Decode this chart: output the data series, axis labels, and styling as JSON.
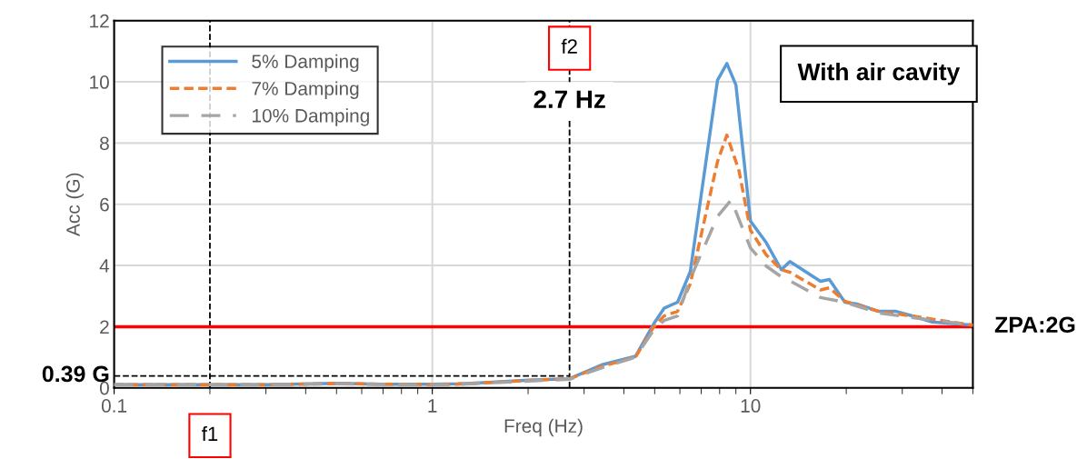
{
  "chart_data": {
    "type": "line",
    "xlabel": "Freq (Hz)",
    "ylabel": "Acc (G)",
    "log": "x",
    "xlim": [
      0.1,
      50
    ],
    "xticks": [
      0.1,
      1,
      10
    ],
    "ylim": [
      0,
      12
    ],
    "yticks": [
      0,
      2,
      4,
      6,
      8,
      10,
      12
    ],
    "grid": true,
    "legend": "top left",
    "series": [
      {
        "name": "5% Damping",
        "color": "#5b9bd5",
        "line_style": "solid",
        "x": [
          0.1,
          0.2,
          0.3,
          0.5,
          0.7,
          1,
          1.2,
          1.5,
          2,
          2.7,
          3.4,
          4.35,
          4.97,
          5.35,
          5.9,
          6.47,
          7.88,
          8.43,
          9.0,
          10,
          11.2,
          12.5,
          13.3,
          16.6,
          17.7,
          19.8,
          21.6,
          25.3,
          28.7,
          32,
          37.3,
          44.4,
          50
        ],
        "values": [
          0.1,
          0.1,
          0.1,
          0.15,
          0.12,
          0.12,
          0.13,
          0.18,
          0.25,
          0.3,
          0.75,
          1.03,
          2.1,
          2.6,
          2.8,
          3.8,
          10.06,
          10.6,
          9.9,
          5.45,
          4.75,
          3.86,
          4.13,
          3.48,
          3.54,
          2.8,
          2.74,
          2.5,
          2.5,
          2.36,
          2.15,
          2.09,
          2.05
        ]
      },
      {
        "name": "7% Damping",
        "color": "#ed7d31",
        "line_style": "dashed",
        "x": [
          0.1,
          0.2,
          0.3,
          0.5,
          0.7,
          1,
          1.2,
          1.5,
          2,
          2.7,
          3.4,
          4.35,
          4.97,
          5.35,
          5.9,
          6.47,
          7.88,
          8.43,
          9.2,
          10,
          11.2,
          12.5,
          13.3,
          16.6,
          17.7,
          19.8,
          25.3,
          32,
          50
        ],
        "values": [
          0.1,
          0.1,
          0.1,
          0.14,
          0.12,
          0.11,
          0.12,
          0.17,
          0.24,
          0.3,
          0.7,
          1.0,
          2.0,
          2.35,
          2.5,
          3.4,
          7.4,
          8.26,
          7.1,
          5.15,
          4.35,
          3.86,
          3.78,
          3.2,
          3.27,
          2.83,
          2.5,
          2.35,
          2.05
        ]
      },
      {
        "name": "10% Damping",
        "color": "#a5a5a5",
        "line_style": "dashed",
        "x": [
          0.1,
          0.2,
          0.3,
          0.5,
          0.7,
          1,
          1.2,
          1.5,
          2,
          2.7,
          3.4,
          4.35,
          4.97,
          5.35,
          5.9,
          6.47,
          7.88,
          8.7,
          10,
          11.2,
          12.5,
          13.3,
          16.6,
          19.8,
          25.3,
          32,
          50
        ],
        "values": [
          0.1,
          0.1,
          0.1,
          0.13,
          0.11,
          0.1,
          0.11,
          0.16,
          0.22,
          0.28,
          0.65,
          1.0,
          1.9,
          2.2,
          2.35,
          3.57,
          5.6,
          6.14,
          4.57,
          3.98,
          3.63,
          3.5,
          2.95,
          2.8,
          2.45,
          2.3,
          2.05
        ]
      }
    ],
    "ref_lines": [
      {
        "axis": "x",
        "value": 0.2,
        "label": "f1",
        "color": "#000000",
        "line_style": "dashed"
      },
      {
        "axis": "x",
        "value": 2.7,
        "label": "f2",
        "color": "#000000",
        "line_style": "dashed"
      },
      {
        "axis": "y",
        "value": 0.39,
        "label": "0.39 G",
        "color": "#000000",
        "line_style": "dashed"
      },
      {
        "axis": "y",
        "value": 2,
        "label": "ZPA:2G",
        "color": "#ff0000",
        "line_style": "solid"
      }
    ],
    "annotations": [
      "2.7 Hz",
      "With air cavity"
    ]
  }
}
